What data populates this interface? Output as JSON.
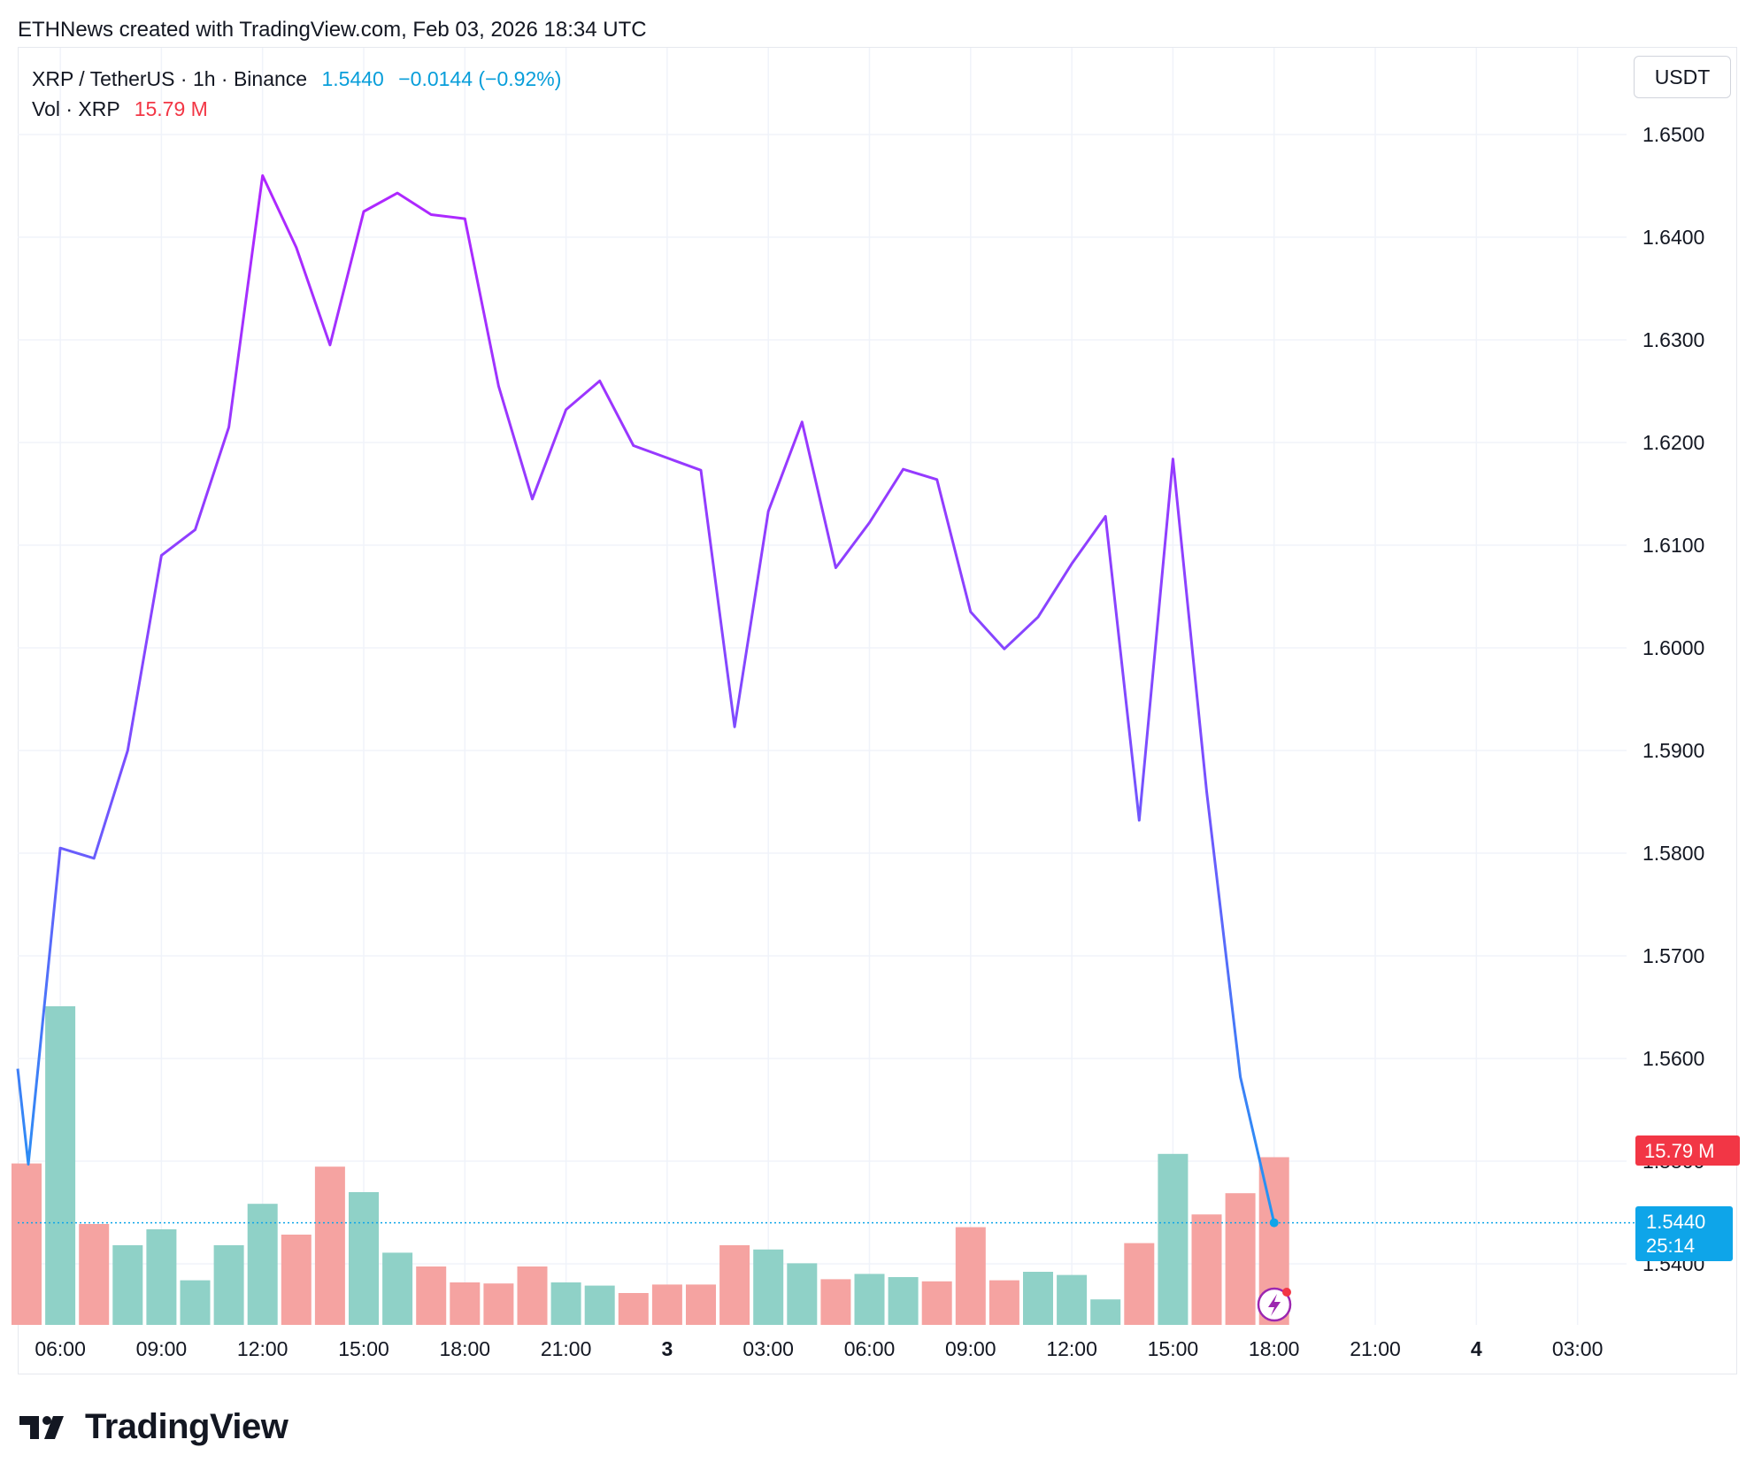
{
  "header": {
    "credit": "ETHNews created with TradingView.com, Feb 03, 2026 18:34 UTC"
  },
  "legend": {
    "symbol": "XRP / TetherUS · 1h · Binance",
    "price": "1.5440",
    "change": "−0.0144 (−0.92%)",
    "vol_label": "Vol · XRP",
    "vol_value": "15.79 M"
  },
  "currency_button": "USDT",
  "price_tag": {
    "value": "1.5440",
    "countdown": "25:14"
  },
  "volume_tag": {
    "value": "15.79 M"
  },
  "footer": {
    "brand": "TradingView"
  },
  "colors": {
    "line_start": "#2196f3",
    "line_mid": "#9c27f0",
    "vol_up": "#8fd1c7",
    "vol_down": "#f5a3a1",
    "price_tag": "#0ea5e9",
    "vol_tag": "#f23645"
  },
  "chart_data": {
    "type": "line",
    "title": "XRP / TetherUS · 1h · Binance",
    "xlabel": "",
    "ylabel": "",
    "ylim": [
      1.534,
      1.657
    ],
    "y_ticks": [
      "1.6500",
      "1.6400",
      "1.6300",
      "1.6200",
      "1.6100",
      "1.6000",
      "1.5900",
      "1.5800",
      "1.5700",
      "1.5600",
      "1.5500",
      "1.5400"
    ],
    "x_ticks": [
      {
        "label": "06:00",
        "index": 1,
        "bold": false
      },
      {
        "label": "09:00",
        "index": 4,
        "bold": false
      },
      {
        "label": "12:00",
        "index": 7,
        "bold": false
      },
      {
        "label": "15:00",
        "index": 10,
        "bold": false
      },
      {
        "label": "18:00",
        "index": 13,
        "bold": false
      },
      {
        "label": "21:00",
        "index": 16,
        "bold": false
      },
      {
        "label": "3",
        "index": 19,
        "bold": true
      },
      {
        "label": "03:00",
        "index": 22,
        "bold": false
      },
      {
        "label": "06:00",
        "index": 25,
        "bold": false
      },
      {
        "label": "09:00",
        "index": 28,
        "bold": false
      },
      {
        "label": "12:00",
        "index": 31,
        "bold": false
      },
      {
        "label": "15:00",
        "index": 34,
        "bold": false
      },
      {
        "label": "18:00",
        "index": 37,
        "bold": false
      },
      {
        "label": "21:00",
        "index": 40,
        "bold": false
      },
      {
        "label": "4",
        "index": 43,
        "bold": true
      },
      {
        "label": "03:00",
        "index": 46,
        "bold": false
      }
    ],
    "series": [
      {
        "values": [
          1.559,
          1.5805,
          1.5795,
          1.59,
          1.609,
          1.6115,
          1.6215,
          1.646,
          1.639,
          1.6295,
          1.6425,
          1.6443,
          1.6422,
          1.6418,
          1.6255,
          1.6145,
          1.6232,
          1.626,
          1.6197,
          1.6185,
          1.6173,
          1.5923,
          1.6133,
          1.622,
          1.6078,
          1.6122,
          1.6174,
          1.6164,
          1.6035,
          1.5999,
          1.603,
          1.6082,
          1.6128,
          1.5832,
          1.6184,
          1.586,
          1.5582,
          1.544
        ]
      }
    ],
    "volume": {
      "name": "Vol · XRP",
      "values": [
        15.2,
        30.0,
        9.5,
        7.5,
        9.0,
        4.2,
        7.5,
        11.4,
        8.5,
        14.9,
        12.5,
        6.8,
        5.5,
        4.0,
        3.9,
        5.5,
        4.0,
        3.7,
        3.0,
        3.8,
        3.8,
        7.5,
        7.1,
        5.8,
        4.3,
        4.8,
        4.5,
        4.1,
        9.2,
        4.2,
        5.0,
        4.7,
        2.4,
        7.7,
        16.1,
        10.4,
        12.4,
        15.79
      ],
      "up": [
        false,
        true,
        false,
        true,
        true,
        true,
        true,
        true,
        false,
        false,
        true,
        true,
        false,
        false,
        false,
        false,
        true,
        true,
        false,
        false,
        false,
        false,
        true,
        true,
        false,
        true,
        true,
        false,
        false,
        false,
        true,
        true,
        true,
        false,
        true,
        false,
        false,
        false
      ]
    }
  }
}
